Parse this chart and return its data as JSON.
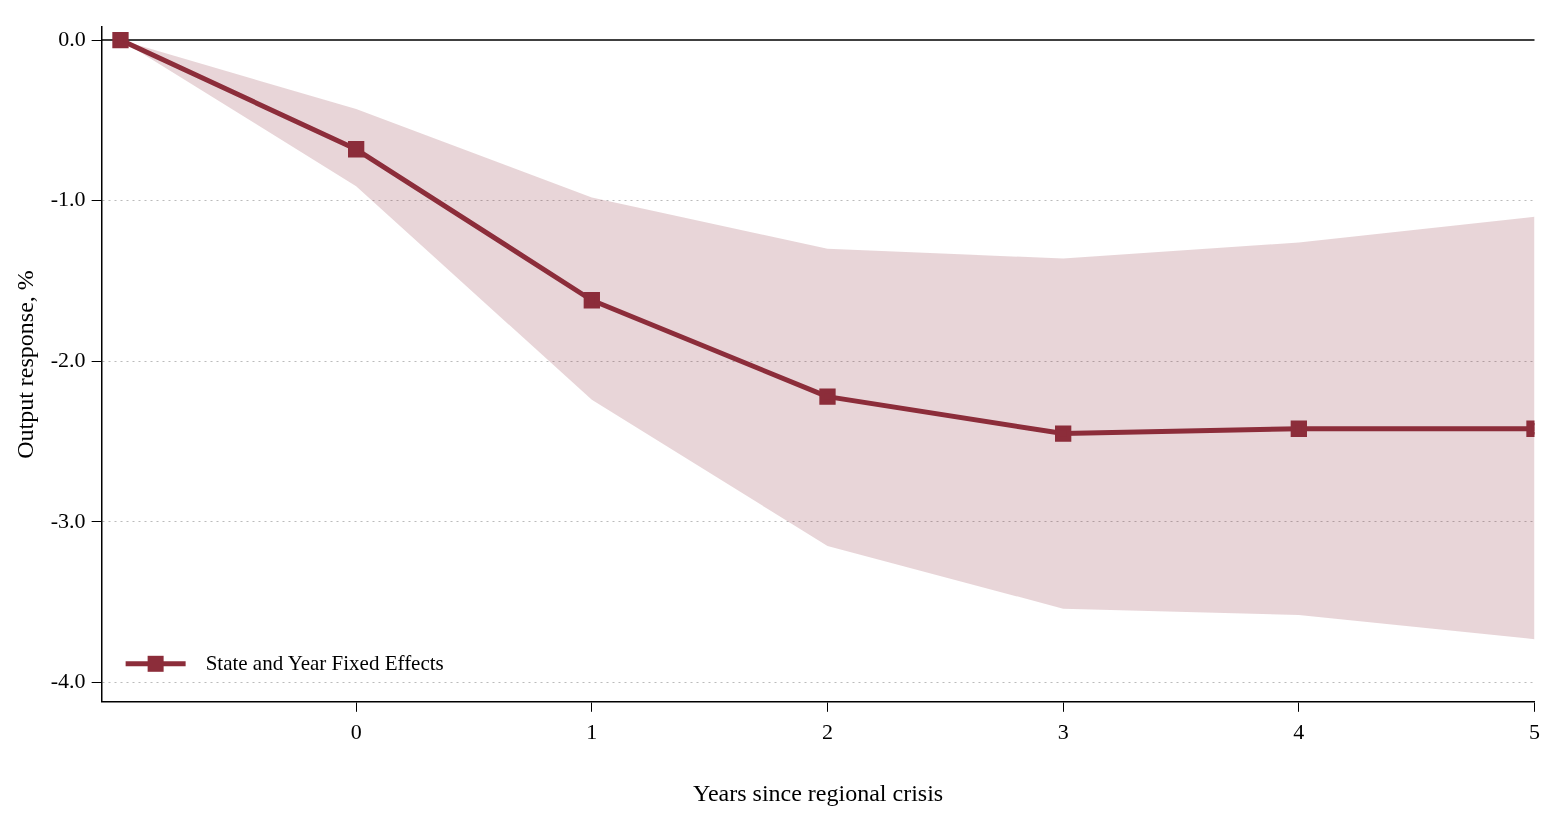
{
  "chart_data": {
    "type": "line",
    "xlabel": "Years since regional crisis",
    "ylabel": "Output response, %",
    "x": [
      -1,
      0,
      1,
      2,
      3,
      4,
      5
    ],
    "series": [
      {
        "name": "State and Year Fixed Effects",
        "color": "#8c2d3a",
        "values": [
          0,
          -0.68,
          -1.62,
          -2.22,
          -2.45,
          -2.42,
          -2.42
        ],
        "lower": [
          0,
          -0.91,
          -2.24,
          -3.15,
          -3.54,
          -3.58,
          -3.73
        ],
        "upper": [
          0,
          -0.43,
          -0.98,
          -1.3,
          -1.36,
          -1.26,
          -1.1
        ]
      }
    ],
    "xlim": [
      -1.08,
      5
    ],
    "xticks": [
      0,
      1,
      2,
      3,
      4,
      5
    ],
    "ylim": [
      -4.12,
      0.08
    ],
    "yticks": [
      {
        "value": 0,
        "label": "0.0"
      },
      {
        "value": -1,
        "label": "-1.0"
      },
      {
        "value": -2,
        "label": "-2.0"
      },
      {
        "value": -3,
        "label": "-3.0"
      },
      {
        "value": -4,
        "label": "-4.0"
      }
    ],
    "ref_lines": [
      {
        "axis": "y",
        "value": 0,
        "color": "#000000",
        "line_style": "solid"
      }
    ],
    "grid": "y",
    "legend": "bottom left",
    "marker": "square",
    "line_style": "solid"
  }
}
